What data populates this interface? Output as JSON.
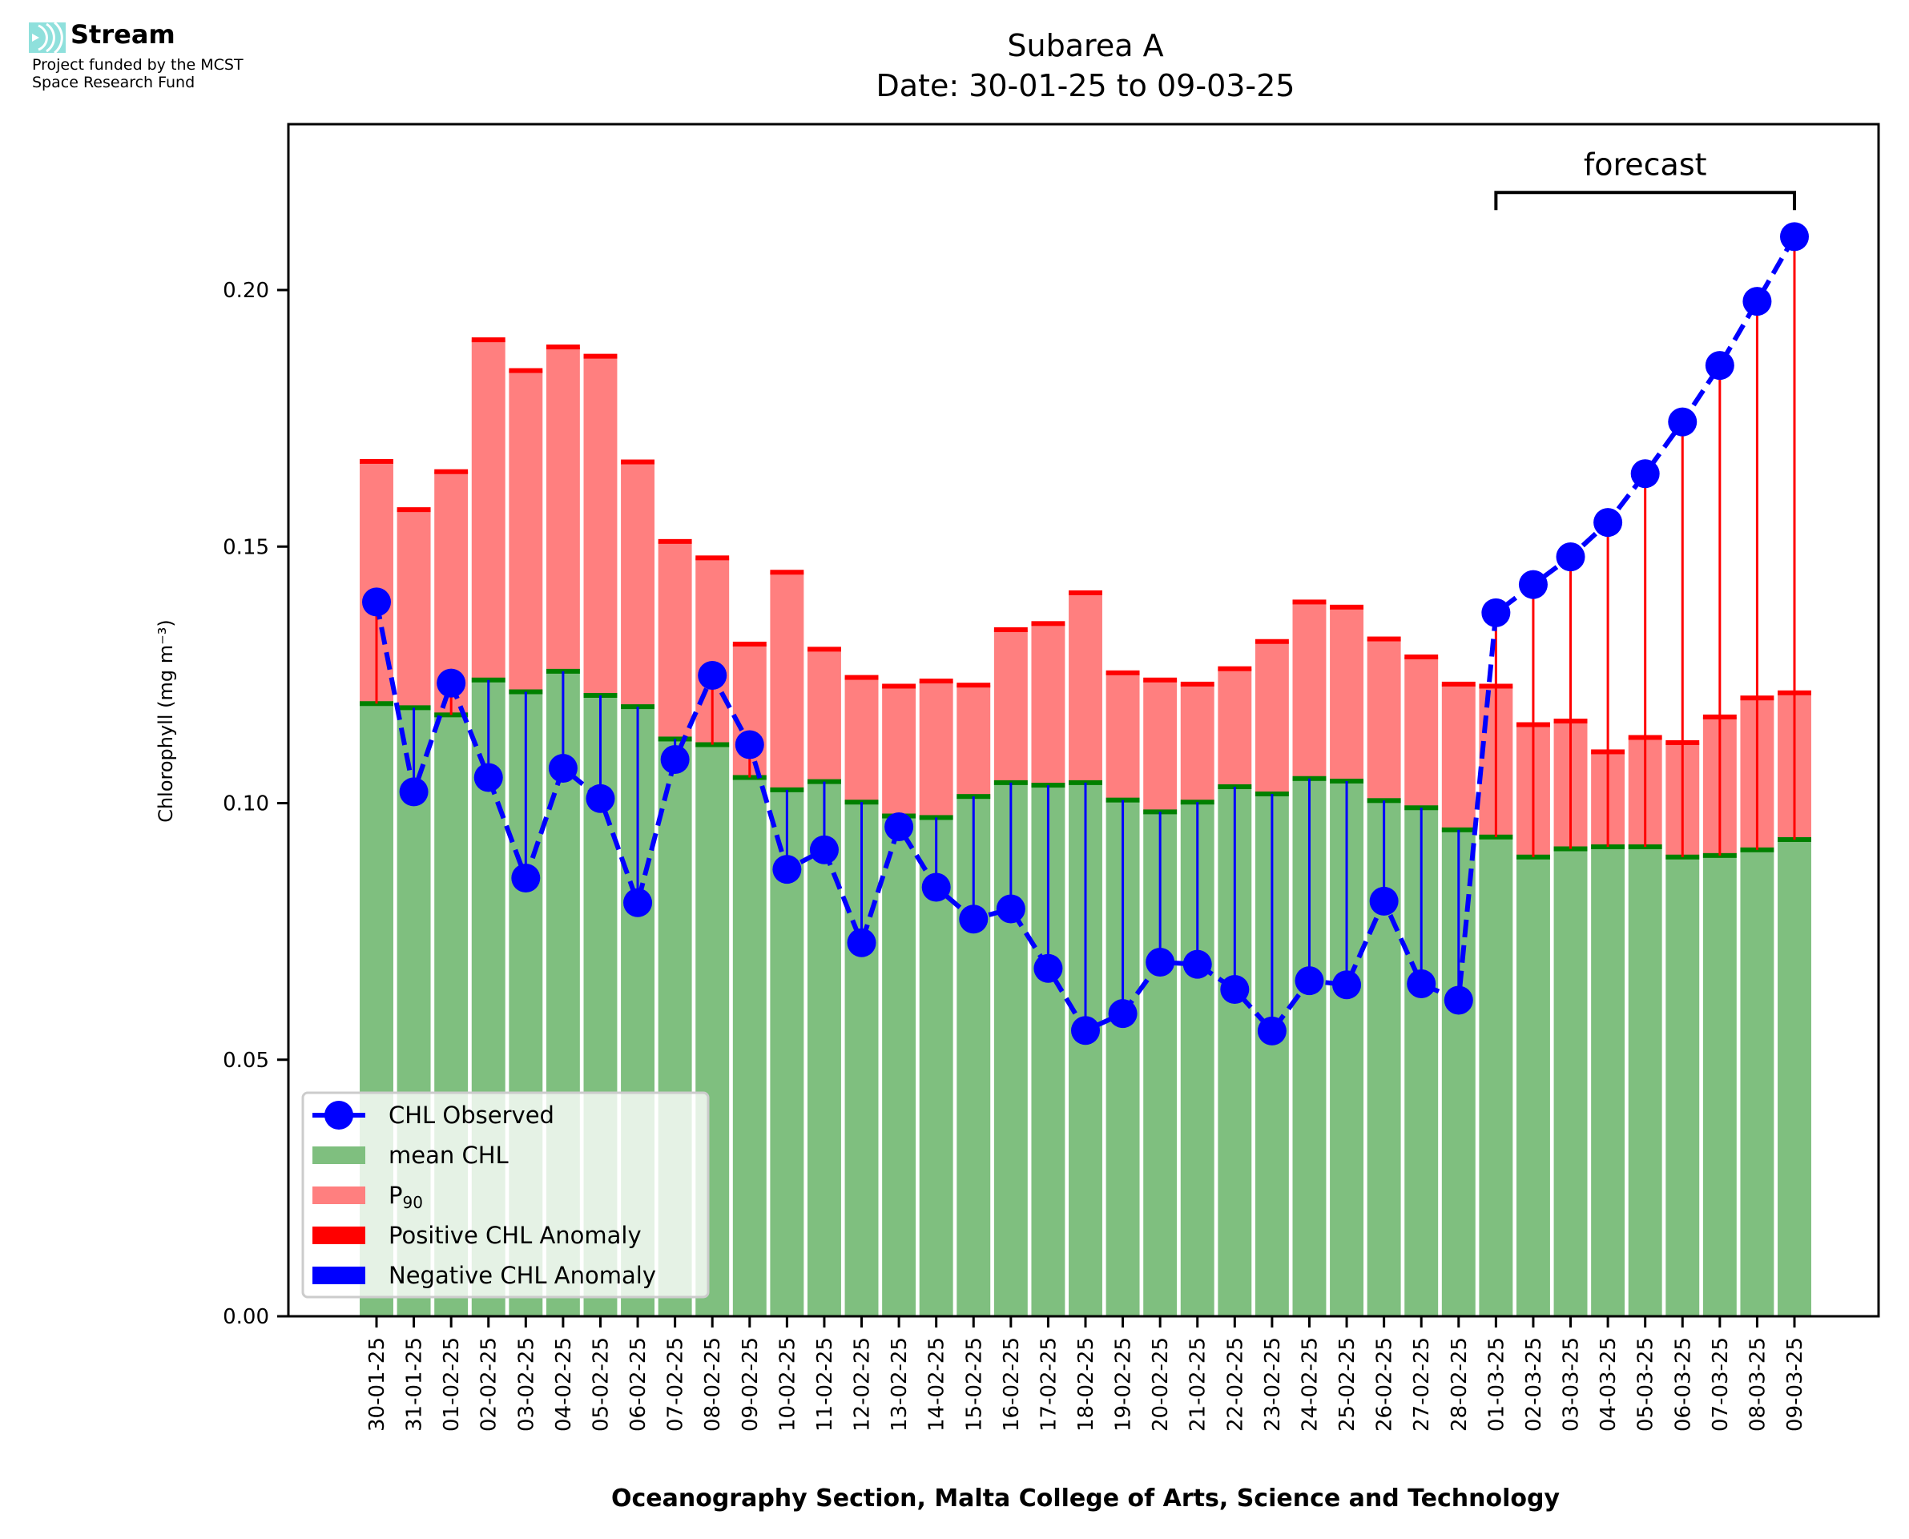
{
  "logo": {
    "name": "Stream",
    "subtitle_line1": "Project funded by the MCST",
    "subtitle_line2": "Space Research Fund",
    "accent": "#8fe0dc"
  },
  "chart_data": {
    "type": "bar",
    "title": "Subarea A",
    "subtitle": "Date: 30-01-25 to 09-03-25",
    "xlabel": "Oceanography Section, Malta College of Arts, Science and Technology",
    "ylabel": "Chlorophyll (mg m⁻³)",
    "ylim": [
      0,
      0.232
    ],
    "yticks": [
      0.0,
      0.05,
      0.1,
      0.15,
      0.2
    ],
    "ytick_labels": [
      "0.00",
      "0.05",
      "0.10",
      "0.15",
      "0.20"
    ],
    "grid": false,
    "legend_position": "lower-left",
    "categories": [
      "30-01-25",
      "31-01-25",
      "01-02-25",
      "02-02-25",
      "03-02-25",
      "04-02-25",
      "05-02-25",
      "06-02-25",
      "07-02-25",
      "08-02-25",
      "09-02-25",
      "10-02-25",
      "11-02-25",
      "12-02-25",
      "13-02-25",
      "14-02-25",
      "15-02-25",
      "16-02-25",
      "17-02-25",
      "18-02-25",
      "19-02-25",
      "20-02-25",
      "21-02-25",
      "22-02-25",
      "23-02-25",
      "24-02-25",
      "25-02-25",
      "26-02-25",
      "27-02-25",
      "28-02-25",
      "01-03-25",
      "02-03-25",
      "03-03-25",
      "04-03-25",
      "05-03-25",
      "06-03-25",
      "07-03-25",
      "08-03-25",
      "09-03-25"
    ],
    "series": [
      {
        "name": "mean CHL",
        "kind": "bar",
        "color": "#7fbf7f",
        "edge_color": "#008000",
        "values": [
          0.1194,
          0.1186,
          0.1172,
          0.124,
          0.1217,
          0.1257,
          0.121,
          0.1188,
          0.1125,
          0.1114,
          0.105,
          0.1026,
          0.1042,
          0.1002,
          0.0975,
          0.0972,
          0.1013,
          0.104,
          0.1035,
          0.104,
          0.1006,
          0.0983,
          0.1002,
          0.1032,
          0.1018,
          0.1048,
          0.1043,
          0.1005,
          0.0991,
          0.0948,
          0.0934,
          0.0895,
          0.0911,
          0.0915,
          0.0915,
          0.0895,
          0.0898,
          0.0909,
          0.0929
        ]
      },
      {
        "name": "P90",
        "label_main": "P",
        "label_sub": "90",
        "kind": "bar",
        "color": "#ff7f7f",
        "edge_color": "#ff0000",
        "values": [
          0.1666,
          0.1572,
          0.1646,
          0.1903,
          0.1843,
          0.1889,
          0.1871,
          0.1665,
          0.151,
          0.1478,
          0.131,
          0.145,
          0.13,
          0.1245,
          0.1228,
          0.1238,
          0.123,
          0.1338,
          0.135,
          0.141,
          0.1254,
          0.124,
          0.1232,
          0.1262,
          0.1315,
          0.1392,
          0.1382,
          0.132,
          0.1285,
          0.1232,
          0.1228,
          0.1153,
          0.116,
          0.11,
          0.1128,
          0.1118,
          0.1168,
          0.1205,
          0.1215
        ]
      },
      {
        "name": "CHL Observed",
        "kind": "line",
        "color": "#0000ff",
        "style": "dashed",
        "marker": "circle",
        "values": [
          0.1392,
          0.1022,
          0.1234,
          0.105,
          0.0854,
          0.1068,
          0.1009,
          0.0806,
          0.1085,
          0.1249,
          0.1114,
          0.0871,
          0.0909,
          0.0728,
          0.0954,
          0.0836,
          0.0774,
          0.0794,
          0.0678,
          0.0557,
          0.059,
          0.069,
          0.0686,
          0.0637,
          0.0556,
          0.0654,
          0.0646,
          0.0809,
          0.0648,
          0.0616,
          0.1371,
          0.1426,
          0.148,
          0.1547,
          0.1642,
          0.1743,
          0.1853,
          0.1978,
          0.2104
        ]
      }
    ],
    "anomaly": {
      "positive_label": "Positive CHL Anomaly",
      "positive_color": "#ff0000",
      "negative_label": "Negative CHL Anomaly",
      "negative_color": "#0000ff"
    },
    "annotation": {
      "text": "forecast",
      "from_category": "01-03-25",
      "to_category": "09-03-25",
      "y": 0.219
    }
  }
}
